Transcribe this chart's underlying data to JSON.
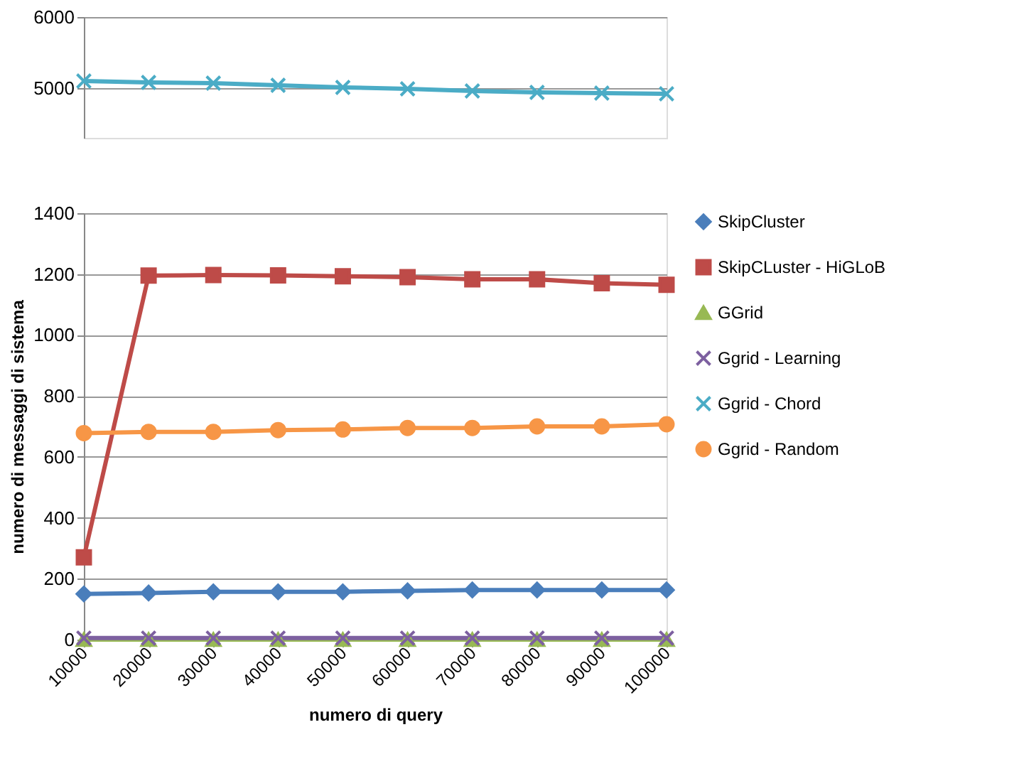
{
  "chart_data": [
    {
      "type": "line",
      "categories": [
        "10000",
        "20000",
        "30000",
        "40000",
        "50000",
        "60000",
        "70000",
        "80000",
        "90000",
        "100000"
      ],
      "ylim": [
        4300,
        6000
      ],
      "yticks": [
        5000,
        6000
      ],
      "grid": "y",
      "tick_labels": "y",
      "series": [
        {
          "name": "Ggrid - Chord",
          "color": "#4bacc6",
          "marker": "cross",
          "values": [
            5100,
            5080,
            5070,
            5040,
            5010,
            4990,
            4960,
            4940,
            4930,
            4920
          ]
        }
      ]
    },
    {
      "type": "line",
      "categories": [
        "10000",
        "20000",
        "30000",
        "40000",
        "50000",
        "60000",
        "70000",
        "80000",
        "90000",
        "100000"
      ],
      "ylim": [
        0,
        1400
      ],
      "yticks": [
        0,
        200,
        400,
        600,
        800,
        1000,
        1200,
        1400
      ],
      "grid": "y",
      "xlabel": "numero di query",
      "ylabel": "numero di messaggi di sistema",
      "legend": "right",
      "series": [
        {
          "name": "SkipCluster",
          "color": "#4a7ebb",
          "marker": "diamond",
          "values": [
            150,
            153,
            157,
            157,
            157,
            160,
            163,
            163,
            163,
            163
          ]
        },
        {
          "name": "SkipCLuster - HiGLoB",
          "color": "#be4b48",
          "marker": "square",
          "values": [
            270,
            1195,
            1197,
            1196,
            1193,
            1190,
            1183,
            1183,
            1170,
            1165
          ]
        },
        {
          "name": "GGrid",
          "color": "#98b954",
          "marker": "triangle",
          "values": [
            0,
            0,
            0,
            0,
            0,
            0,
            0,
            0,
            0,
            0
          ]
        },
        {
          "name": "Ggrid - Learning",
          "color": "#7d60a0",
          "marker": "cross",
          "values": [
            5,
            5,
            5,
            5,
            5,
            5,
            5,
            5,
            5,
            5
          ]
        },
        {
          "name": "Ggrid - Random",
          "color": "#f79646",
          "marker": "circle",
          "values": [
            678,
            682,
            682,
            688,
            690,
            695,
            695,
            700,
            700,
            707
          ]
        }
      ]
    }
  ]
}
